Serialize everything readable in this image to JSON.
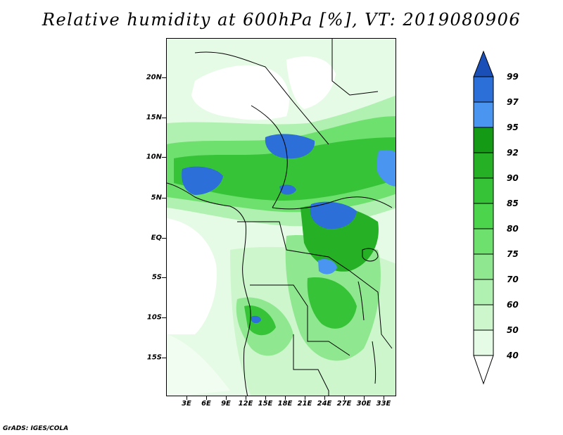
{
  "title": "Relative humidity at 600hPa [%], VT: 2019080906",
  "credit": "GrADS: IGES/COLA",
  "map": {
    "lat_labels": [
      "20N",
      "15N",
      "10N",
      "5N",
      "EQ",
      "5S",
      "10S",
      "15S"
    ],
    "lat_values": [
      20,
      15,
      10,
      5,
      0,
      -5,
      -10,
      -15
    ],
    "lon_labels": [
      "3E",
      "6E",
      "9E",
      "12E",
      "15E",
      "18E",
      "21E",
      "24E",
      "27E",
      "30E",
      "33E"
    ],
    "lon_values": [
      3,
      6,
      9,
      12,
      15,
      18,
      21,
      24,
      27,
      30,
      33
    ]
  },
  "colorbar": {
    "levels": [
      "40",
      "50",
      "60",
      "70",
      "75",
      "80",
      "85",
      "90",
      "92",
      "95",
      "97",
      "99"
    ],
    "level_values": [
      40,
      50,
      60,
      70,
      75,
      80,
      85,
      90,
      92,
      95,
      97,
      99
    ],
    "colors": [
      "#ffffff",
      "#e6fbe6",
      "#cdf6cd",
      "#b0f0b0",
      "#8fe88f",
      "#6ee06e",
      "#4cd44c",
      "#37c337",
      "#26b026",
      "#149a14",
      "#4a95f0",
      "#2c6fd8",
      "#1a4fb8"
    ]
  },
  "colors": {
    "coast": "#000000",
    "wet_blue": "#2c6fd8",
    "moist_green": "#37c337",
    "light_green": "#b0f0b0"
  }
}
